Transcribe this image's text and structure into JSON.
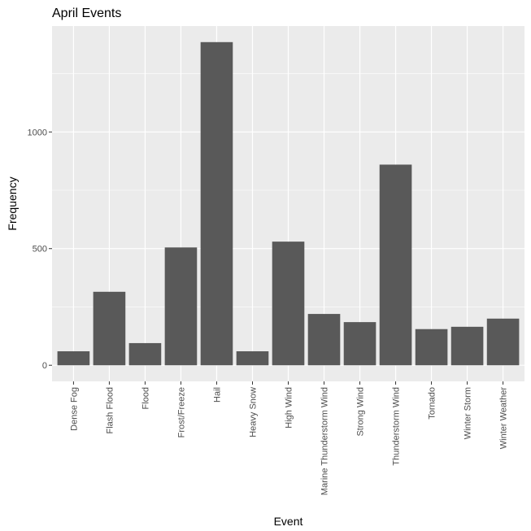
{
  "chart_data": {
    "type": "bar",
    "title": "April Events",
    "xlabel": "Event",
    "ylabel": "Frequency",
    "categories": [
      "Dense Fog",
      "Flash Flood",
      "Flood",
      "Frost/Freeze",
      "Hail",
      "Heavy Snow",
      "High Wind",
      "Marine Thunderstorm Wind",
      "Strong Wind",
      "Thunderstorm Wind",
      "Tornado",
      "Winter Storm",
      "Winter Weather"
    ],
    "values": [
      60,
      315,
      95,
      505,
      1385,
      60,
      530,
      220,
      185,
      860,
      155,
      165,
      200
    ],
    "yticks": [
      0,
      500,
      1000
    ],
    "ylim": [
      -69,
      1454
    ],
    "grid": true,
    "colors": {
      "panel": "#ebebeb",
      "grid": "#ffffff",
      "bar": "#595959",
      "tick": "#333333"
    }
  }
}
